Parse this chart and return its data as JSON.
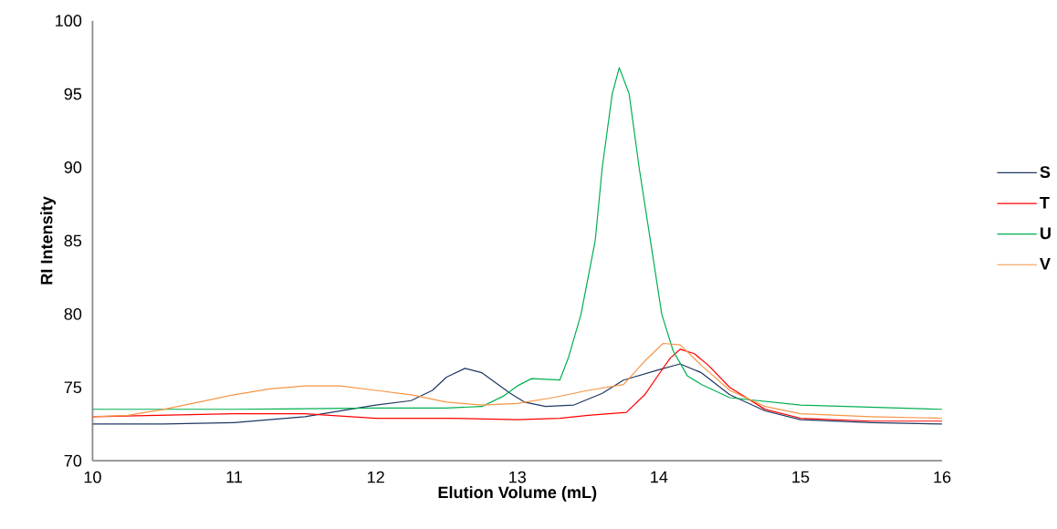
{
  "chart_data": {
    "type": "line",
    "xlabel": "Elution Volume (mL)",
    "ylabel": "RI Intensity",
    "xlim": [
      10,
      16
    ],
    "ylim": [
      70,
      100
    ],
    "xticks": [
      10,
      11,
      12,
      13,
      14,
      15,
      16
    ],
    "yticks": [
      70,
      75,
      80,
      85,
      90,
      95,
      100
    ],
    "grid": false,
    "legend": "right",
    "marker": "none",
    "line_style": "solid",
    "series": [
      {
        "name": "S",
        "color": "#203864",
        "x": [
          10,
          10.5,
          11,
          11.5,
          12,
          12.25,
          12.4,
          12.5,
          12.63,
          12.75,
          12.85,
          12.95,
          13.05,
          13.2,
          13.4,
          13.6,
          13.75,
          14.0,
          14.15,
          14.3,
          14.5,
          14.75,
          15,
          15.5,
          16
        ],
        "values": [
          72.5,
          72.5,
          72.6,
          73.0,
          73.8,
          74.1,
          74.8,
          75.7,
          76.3,
          76.0,
          75.3,
          74.6,
          74.0,
          73.7,
          73.8,
          74.6,
          75.5,
          76.2,
          76.6,
          76.0,
          74.5,
          73.4,
          72.8,
          72.6,
          72.5
        ]
      },
      {
        "name": "T",
        "color": "#ff0000",
        "x": [
          10,
          11,
          11.5,
          12,
          12.5,
          13,
          13.3,
          13.5,
          13.77,
          13.9,
          14.0,
          14.08,
          14.15,
          14.25,
          14.35,
          14.5,
          14.75,
          15,
          15.5,
          16
        ],
        "values": [
          73.0,
          73.2,
          73.2,
          72.9,
          72.9,
          72.8,
          72.9,
          73.1,
          73.3,
          74.5,
          75.9,
          77.0,
          77.6,
          77.3,
          76.5,
          75.0,
          73.5,
          72.9,
          72.7,
          72.7
        ]
      },
      {
        "name": "U",
        "color": "#00b050",
        "x": [
          10,
          11,
          12,
          12.5,
          12.75,
          12.9,
          13.0,
          13.1,
          13.3,
          13.36,
          13.45,
          13.55,
          13.6,
          13.67,
          13.72,
          13.79,
          13.86,
          13.94,
          14.02,
          14.1,
          14.2,
          14.3,
          14.5,
          15,
          16
        ],
        "values": [
          73.5,
          73.5,
          73.6,
          73.6,
          73.7,
          74.4,
          75.1,
          75.6,
          75.5,
          77.0,
          80,
          85,
          90,
          95,
          96.8,
          95,
          90,
          85,
          80,
          77.5,
          75.8,
          75.2,
          74.3,
          73.8,
          73.5
        ]
      },
      {
        "name": "V",
        "color": "#f79646",
        "x": [
          10,
          10.25,
          10.5,
          10.75,
          11,
          11.25,
          11.5,
          11.75,
          12,
          12.25,
          12.5,
          12.75,
          13,
          13.25,
          13.5,
          13.75,
          13.9,
          14.03,
          14.15,
          14.3,
          14.5,
          14.75,
          15,
          15.5,
          16
        ],
        "values": [
          73.0,
          73.1,
          73.5,
          74.0,
          74.5,
          74.9,
          75.1,
          75.1,
          74.8,
          74.5,
          74.0,
          73.8,
          73.9,
          74.3,
          74.8,
          75.2,
          76.8,
          78.0,
          77.9,
          76.5,
          74.8,
          73.7,
          73.2,
          73.0,
          72.9
        ]
      }
    ]
  }
}
